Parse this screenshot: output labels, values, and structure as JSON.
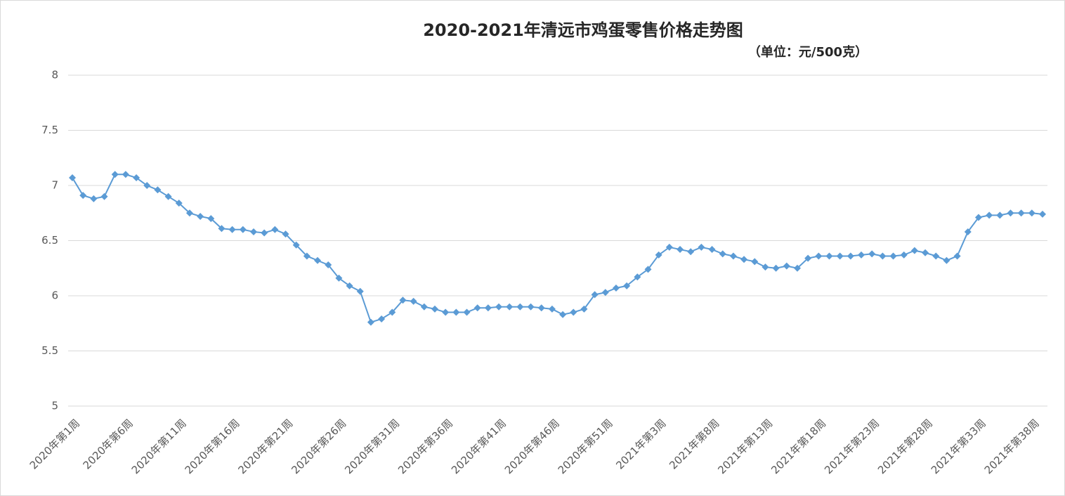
{
  "chart_data": {
    "type": "line",
    "title": "2020-2021年清远市鸡蛋零售价格走势图",
    "subtitle": "（单位：元/500克）",
    "categories": [
      "2020年第1周",
      null,
      null,
      null,
      null,
      "2020年第6周",
      null,
      null,
      null,
      null,
      "2020年第11周",
      null,
      null,
      null,
      null,
      "2020年第16周",
      null,
      null,
      null,
      null,
      "2020年第21周",
      null,
      null,
      null,
      null,
      "2020年第26周",
      null,
      null,
      null,
      null,
      "2020年第31周",
      null,
      null,
      null,
      null,
      "2020年第36周",
      null,
      null,
      null,
      null,
      "2020年第41周",
      null,
      null,
      null,
      null,
      "2020年第46周",
      null,
      null,
      null,
      null,
      "2020年第51周",
      null,
      null,
      null,
      null,
      "2021年第3周",
      null,
      null,
      null,
      null,
      "2021年第8周",
      null,
      null,
      null,
      null,
      "2021年第13周",
      null,
      null,
      null,
      null,
      "2021年第18周",
      null,
      null,
      null,
      null,
      "2021年第23周",
      null,
      null,
      null,
      null,
      "2021年第28周",
      null,
      null,
      null,
      null,
      "2021年第33周",
      null,
      null,
      null,
      null,
      "2021年第38周",
      null
    ],
    "series": [
      {
        "color": "#5b9bd5",
        "values": [
          7.07,
          6.91,
          6.88,
          6.9,
          7.1,
          7.1,
          7.07,
          7.0,
          6.96,
          6.9,
          6.84,
          6.75,
          6.72,
          6.7,
          6.61,
          6.6,
          6.6,
          6.58,
          6.57,
          6.6,
          6.56,
          6.46,
          6.36,
          6.32,
          6.28,
          6.16,
          6.09,
          6.04,
          5.76,
          5.79,
          5.85,
          5.96,
          5.95,
          5.9,
          5.88,
          5.85,
          5.85,
          5.85,
          5.89,
          5.89,
          5.9,
          5.9,
          5.9,
          5.9,
          5.89,
          5.88,
          5.83,
          5.85,
          5.88,
          6.01,
          6.03,
          6.07,
          6.09,
          6.17,
          6.24,
          6.37,
          6.44,
          6.42,
          6.4,
          6.44,
          6.42,
          6.38,
          6.36,
          6.33,
          6.31,
          6.26,
          6.25,
          6.27,
          6.25,
          6.34,
          6.36,
          6.36,
          6.36,
          6.36,
          6.37,
          6.38,
          6.36,
          6.36,
          6.37,
          6.41,
          6.39,
          6.36,
          6.32,
          6.36,
          6.58,
          6.71,
          6.73,
          6.73,
          6.75,
          6.75,
          6.75,
          6.74
        ]
      }
    ],
    "ylim": [
      5,
      8
    ],
    "yticks": [
      5,
      5.5,
      6,
      6.5,
      7,
      7.5,
      8
    ],
    "grid": true
  }
}
